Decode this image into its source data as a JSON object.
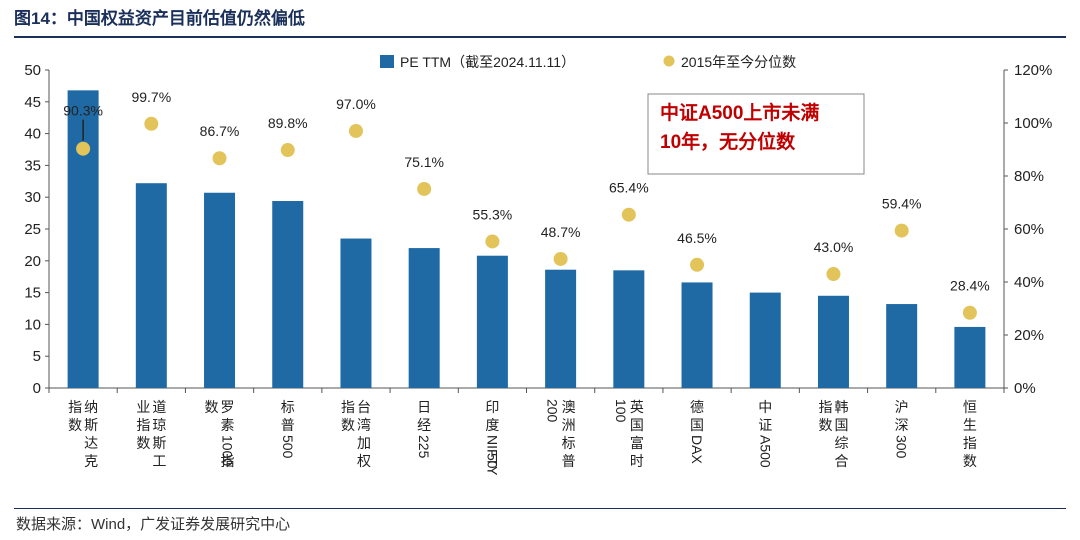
{
  "header": {
    "title": "图14：中国权益资产目前估值仍然偏低"
  },
  "source": "数据来源：Wind，广发证券发展研究中心",
  "note": {
    "lines": [
      "中证A500上市未满",
      "10年，无分位数"
    ],
    "color": "#c00000"
  },
  "colors": {
    "bar": "#1f6aa5",
    "dot": "#e2c45a",
    "text": "#222222"
  },
  "chart_data": {
    "type": "bar",
    "categories": [
      [
        "纳",
        "斯",
        "达",
        "克",
        "指",
        "数"
      ],
      [
        "道",
        "琼",
        "斯",
        "工",
        "业",
        "指",
        "数"
      ],
      [
        "罗",
        "素",
        "1000",
        "指",
        "数"
      ],
      [
        "标",
        "普",
        "500"
      ],
      [
        "台",
        "湾",
        "加",
        "权",
        "指",
        "数"
      ],
      [
        "日",
        "经",
        "225"
      ],
      [
        "印",
        "度",
        "NIFTY",
        "50"
      ],
      [
        "澳",
        "洲",
        "标",
        "普",
        "200"
      ],
      [
        "英",
        "国",
        "富",
        "时",
        "100"
      ],
      [
        "德",
        "国",
        "DAX"
      ],
      [
        "中",
        "证",
        "A500"
      ],
      [
        "韩",
        "国",
        "综",
        "合",
        "指",
        "数"
      ],
      [
        "沪",
        "深",
        "300"
      ],
      [
        "恒",
        "生",
        "指",
        "数"
      ]
    ],
    "series": [
      {
        "name": "PE TTM（截至2024.11.11）",
        "type": "bar",
        "axis": "left",
        "values": [
          46.8,
          32.2,
          30.7,
          29.4,
          23.5,
          22.0,
          20.8,
          18.6,
          18.5,
          16.6,
          15.0,
          14.5,
          13.2,
          9.6
        ]
      },
      {
        "name": "2015年至今分位数",
        "type": "scatter",
        "axis": "right",
        "values": [
          90.3,
          99.7,
          86.7,
          89.8,
          97.0,
          75.1,
          55.3,
          48.7,
          65.4,
          46.5,
          null,
          43.0,
          59.4,
          28.4
        ],
        "labels": [
          "90.3%",
          "99.7%",
          "86.7%",
          "89.8%",
          "97.0%",
          "75.1%",
          "55.3%",
          "48.7%",
          "65.4%",
          "46.5%",
          "",
          "43.0%",
          "59.4%",
          "28.4%"
        ]
      }
    ],
    "y_left": {
      "ylim": [
        0,
        50
      ],
      "ticks": [
        "0",
        "5",
        "10",
        "15",
        "20",
        "25",
        "30",
        "35",
        "40",
        "45",
        "50"
      ]
    },
    "y_right": {
      "ylim": [
        0,
        120
      ],
      "ticks": [
        "0%",
        "20%",
        "40%",
        "60%",
        "80%",
        "100%",
        "120%"
      ]
    },
    "grid": false,
    "legend_placement": "top"
  }
}
